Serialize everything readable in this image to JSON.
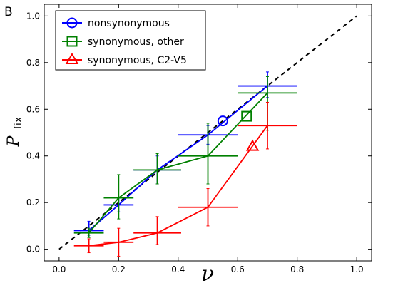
{
  "panel_label": "B",
  "chart_data": {
    "type": "line",
    "xlabel": "ν",
    "ylabel": "P",
    "ylabel_subscript": "fix",
    "xlim": [
      -0.05,
      1.05
    ],
    "ylim": [
      -0.05,
      1.05
    ],
    "xticks": [
      "0.0",
      "0.2",
      "0.4",
      "0.6",
      "0.8",
      "1.0"
    ],
    "yticks": [
      "0.0",
      "0.2",
      "0.4",
      "0.6",
      "0.8",
      "1.0"
    ],
    "grid": false,
    "legend_position": "top-left",
    "reference_line": {
      "style": "dashed",
      "color": "#000000",
      "from": [
        0.0,
        0.0
      ],
      "to": [
        1.0,
        1.0
      ]
    },
    "series": [
      {
        "name": "nonsynonymous",
        "color": "#0000ff",
        "marker": "circle",
        "points": [
          {
            "x": 0.1,
            "y": 0.08,
            "xerr": 0.05,
            "yerr": [
              0.02,
              0.04
            ]
          },
          {
            "x": 0.2,
            "y": 0.19,
            "xerr": 0.05,
            "yerr": [
              0.03,
              0.03
            ]
          },
          {
            "x": 0.33,
            "y": 0.34,
            "xerr": 0.08,
            "yerr": [
              0.06,
              0.06
            ]
          },
          {
            "x": 0.5,
            "y": 0.49,
            "xerr": 0.1,
            "yerr": [
              0.04,
              0.04
            ]
          },
          {
            "x": 0.7,
            "y": 0.7,
            "xerr": 0.1,
            "yerr": [
              0.05,
              0.06
            ]
          }
        ],
        "summary_point": {
          "x": 0.55,
          "y": 0.55
        }
      },
      {
        "name": "synonymous, other",
        "color": "#008000",
        "marker": "square",
        "points": [
          {
            "x": 0.1,
            "y": 0.07,
            "xerr": 0.05,
            "yerr": [
              0.02,
              0.02
            ]
          },
          {
            "x": 0.2,
            "y": 0.22,
            "xerr": 0.05,
            "yerr": [
              0.09,
              0.1
            ]
          },
          {
            "x": 0.33,
            "y": 0.34,
            "xerr": 0.08,
            "yerr": [
              0.06,
              0.07
            ]
          },
          {
            "x": 0.5,
            "y": 0.4,
            "xerr": 0.1,
            "yerr": [
              0.12,
              0.14
            ]
          },
          {
            "x": 0.7,
            "y": 0.67,
            "xerr": 0.1,
            "yerr": [
              0.16,
              0.07
            ]
          }
        ],
        "summary_point": {
          "x": 0.63,
          "y": 0.57
        }
      },
      {
        "name": "synonymous, C2-V5",
        "color": "#ff0000",
        "marker": "triangle",
        "points": [
          {
            "x": 0.1,
            "y": 0.015,
            "xerr": 0.05,
            "yerr": [
              0.03,
              0.03
            ]
          },
          {
            "x": 0.2,
            "y": 0.03,
            "xerr": 0.05,
            "yerr": [
              0.06,
              0.06
            ]
          },
          {
            "x": 0.33,
            "y": 0.07,
            "xerr": 0.08,
            "yerr": [
              0.05,
              0.07
            ]
          },
          {
            "x": 0.5,
            "y": 0.18,
            "xerr": 0.1,
            "yerr": [
              0.08,
              0.08
            ]
          },
          {
            "x": 0.7,
            "y": 0.53,
            "xerr": 0.1,
            "yerr": [
              0.1,
              0.1
            ]
          }
        ],
        "summary_point": {
          "x": 0.65,
          "y": 0.44
        }
      }
    ]
  }
}
